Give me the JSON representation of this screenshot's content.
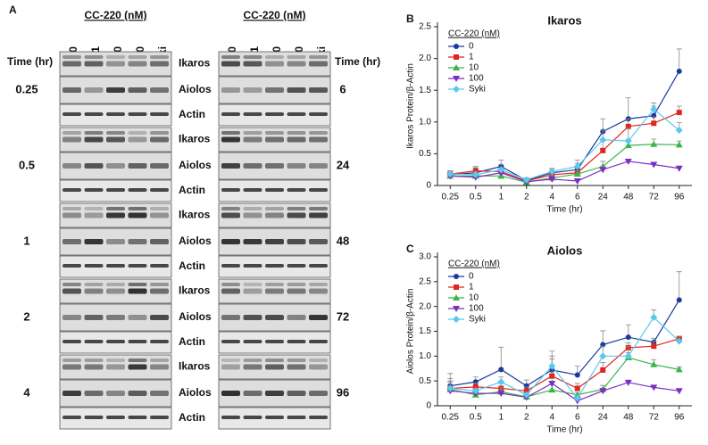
{
  "blots": {
    "panel": "A",
    "header": "CC-220 (nM)",
    "lanes": [
      "0",
      "1",
      "10",
      "100",
      "Syki"
    ],
    "time_label": "Time (hr)",
    "left_times": [
      "0.25",
      "0.5",
      "1",
      "2",
      "4"
    ],
    "right_times": [
      "6",
      "24",
      "48",
      "72",
      "96"
    ],
    "proteins": [
      "Ikaros",
      "Aiolos",
      "Actin"
    ]
  },
  "chart_data": [
    {
      "type": "line",
      "panel": "B",
      "title": "Ikaros",
      "ylabel": "Ikaros Protein/β-Actin",
      "xlabel": "Time (hr)",
      "legend_title": "CC-220 (nM)",
      "categories": [
        "0.25",
        "0.5",
        "1",
        "2",
        "4",
        "6",
        "24",
        "48",
        "72",
        "96"
      ],
      "ylim": [
        0,
        2.5
      ],
      "yticks": [
        0,
        0.5,
        {
          "value": 1,
          "label": "1.0"
        },
        1.5,
        {
          "value": 2,
          "label": "2.0"
        },
        2.5
      ],
      "series": [
        {
          "name": "0",
          "color": "#1a3a9c",
          "marker": "circle",
          "values": [
            0.17,
            0.2,
            0.3,
            0.08,
            0.2,
            0.25,
            0.85,
            1.05,
            1.1,
            1.8
          ],
          "errors": [
            0.06,
            0.08,
            0.1,
            0.03,
            0.06,
            0.1,
            0.2,
            0.33,
            0.15,
            0.35
          ]
        },
        {
          "name": "1",
          "color": "#e0261f",
          "marker": "square",
          "values": [
            0.18,
            0.23,
            0.22,
            0.07,
            0.17,
            0.2,
            0.55,
            0.93,
            0.98,
            1.15
          ],
          "errors": [
            0.05,
            0.07,
            0.06,
            0.03,
            0.05,
            0.08,
            0.15,
            0.12,
            0.1,
            0.1
          ]
        },
        {
          "name": "10",
          "color": "#3ab54a",
          "marker": "triangle",
          "values": [
            0.15,
            0.15,
            0.15,
            0.05,
            0.12,
            0.18,
            0.3,
            0.63,
            0.65,
            0.64
          ],
          "errors": [
            0.04,
            0.05,
            0.05,
            0.02,
            0.04,
            0.05,
            0.08,
            0.1,
            0.08,
            0.06
          ]
        },
        {
          "name": "100",
          "color": "#7a2fbf",
          "marker": "down",
          "values": [
            0.15,
            0.13,
            0.2,
            0.06,
            0.1,
            0.07,
            0.25,
            0.38,
            0.33,
            0.27
          ],
          "errors": [
            0.03,
            0.03,
            0.05,
            0.02,
            0.03,
            0.02,
            0.05,
            0.03,
            0.03,
            0.03
          ]
        },
        {
          "name": "Syki",
          "color": "#5bc8ef",
          "marker": "diamond",
          "values": [
            0.18,
            0.17,
            0.25,
            0.09,
            0.22,
            0.3,
            0.72,
            0.7,
            1.2,
            0.87
          ],
          "errors": [
            0.05,
            0.05,
            0.08,
            0.03,
            0.05,
            0.1,
            0.15,
            0.2,
            0.1,
            0.12
          ]
        }
      ]
    },
    {
      "type": "line",
      "panel": "C",
      "title": "Aiolos",
      "ylabel": "Aiolos Protein/β-Actin",
      "xlabel": "Time (hr)",
      "legend_title": "CC-220 (nM)",
      "categories": [
        "0.25",
        "0.5",
        "1",
        "2",
        "4",
        "6",
        "24",
        "48",
        "72",
        "96"
      ],
      "ylim": [
        0,
        3
      ],
      "yticks": [
        0,
        0.5,
        {
          "value": 1,
          "label": "1.0"
        },
        1.5,
        {
          "value": 2,
          "label": "2.0"
        },
        2.5,
        {
          "value": 3,
          "label": "3.0"
        }
      ],
      "series": [
        {
          "name": "0",
          "color": "#1a3a9c",
          "marker": "circle",
          "values": [
            0.4,
            0.48,
            0.73,
            0.4,
            0.72,
            0.62,
            1.23,
            1.38,
            1.28,
            2.13
          ],
          "errors": [
            0.25,
            0.1,
            0.45,
            0.12,
            0.22,
            0.18,
            0.28,
            0.25,
            0.08,
            0.57
          ]
        },
        {
          "name": "1",
          "color": "#e0261f",
          "marker": "square",
          "values": [
            0.35,
            0.38,
            0.35,
            0.3,
            0.6,
            0.35,
            0.72,
            1.17,
            1.2,
            1.35
          ],
          "errors": [
            0.2,
            0.08,
            0.1,
            0.08,
            0.4,
            0.1,
            0.15,
            0.1,
            0.1,
            0.05
          ]
        },
        {
          "name": "10",
          "color": "#3ab54a",
          "marker": "triangle",
          "values": [
            0.33,
            0.22,
            0.28,
            0.18,
            0.32,
            0.22,
            0.33,
            0.97,
            0.83,
            0.73
          ],
          "errors": [
            0.15,
            0.05,
            0.08,
            0.05,
            0.1,
            0.05,
            0.08,
            0.1,
            0.1,
            0.05
          ]
        },
        {
          "name": "100",
          "color": "#7a2fbf",
          "marker": "down",
          "values": [
            0.3,
            0.25,
            0.25,
            0.17,
            0.45,
            0.1,
            0.3,
            0.47,
            0.37,
            0.3
          ],
          "errors": [
            0.1,
            0.05,
            0.05,
            0.04,
            0.1,
            0.03,
            0.05,
            0.03,
            0.03,
            0.03
          ]
        },
        {
          "name": "Syki",
          "color": "#5bc8ef",
          "marker": "diamond",
          "values": [
            0.35,
            0.3,
            0.48,
            0.22,
            0.8,
            0.15,
            1.0,
            1.0,
            1.78,
            1.3
          ],
          "errors": [
            0.15,
            0.05,
            0.1,
            0.05,
            0.3,
            0.05,
            0.2,
            0.2,
            0.15,
            0.1
          ]
        }
      ]
    }
  ]
}
